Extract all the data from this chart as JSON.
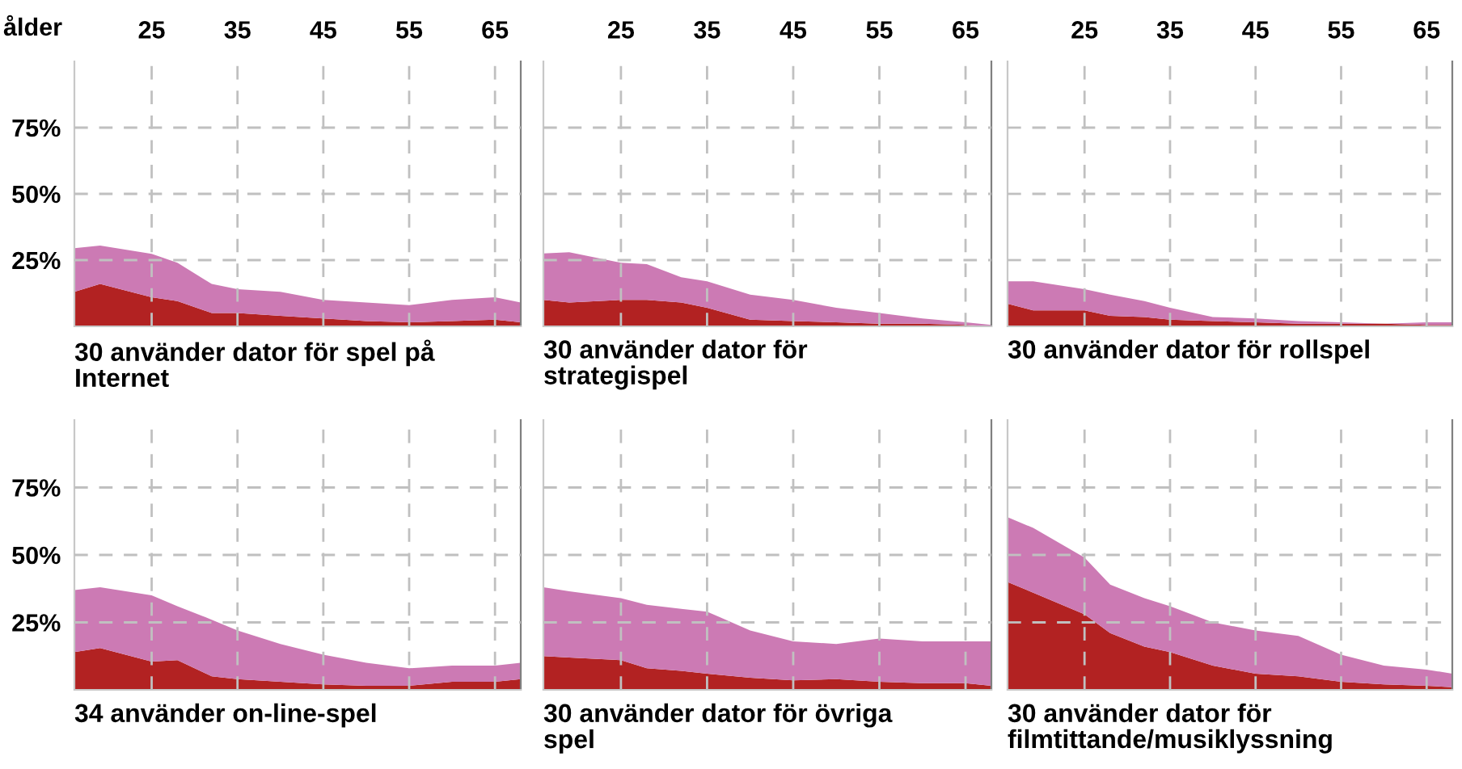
{
  "chart_data": [
    {
      "type": "area",
      "stacked": true,
      "title": "30 använder dator för spel på\nInternet",
      "annotations": [
        "ålder"
      ],
      "x": [
        16,
        19,
        25,
        28,
        32,
        35,
        40,
        45,
        50,
        55,
        60,
        65,
        68
      ],
      "xlim": [
        16,
        68
      ],
      "xticks": [
        25,
        35,
        45,
        55,
        65
      ],
      "ylim": [
        0,
        100
      ],
      "yticks": [
        {
          "value": 25,
          "label": "25%"
        },
        {
          "value": 50,
          "label": "50%"
        },
        {
          "value": 75,
          "label": "75%"
        }
      ],
      "grid": true,
      "series": [
        {
          "color": "#b22222",
          "values": [
            13,
            16,
            11,
            9.5,
            5,
            5,
            4,
            3,
            2,
            1.5,
            2,
            2.5,
            1.5
          ]
        },
        {
          "color": "#cc7ab4",
          "values": [
            16.5,
            14.5,
            16.4,
            14.5,
            11,
            9,
            9,
            7,
            7,
            6.5,
            8,
            8.5,
            7.5
          ]
        }
      ]
    },
    {
      "type": "area",
      "stacked": true,
      "title": "30 använder dator för\nstrategispel",
      "x": [
        16,
        19,
        25,
        28,
        32,
        35,
        40,
        45,
        50,
        55,
        60,
        65,
        68
      ],
      "xlim": [
        16,
        68
      ],
      "xticks": [
        25,
        35,
        45,
        55,
        65
      ],
      "ylim": [
        0,
        100
      ],
      "yticks": [
        {
          "value": 25,
          "label": null
        },
        {
          "value": 50,
          "label": null
        },
        {
          "value": 75,
          "label": null
        }
      ],
      "grid": true,
      "tick_labels": "x",
      "series": [
        {
          "color": "#b22222",
          "values": [
            10,
            9,
            10,
            10,
            9,
            7,
            2.5,
            2,
            1.5,
            1,
            1,
            0.5,
            0
          ]
        },
        {
          "color": "#cc7ab4",
          "values": [
            17.5,
            19,
            14,
            13.5,
            9.5,
            10,
            9.5,
            8,
            5.5,
            4,
            2,
            1,
            0.5
          ]
        }
      ]
    },
    {
      "type": "area",
      "stacked": true,
      "title": "30 använder dator för rollspel",
      "x": [
        16,
        19,
        25,
        28,
        32,
        35,
        40,
        45,
        50,
        55,
        60,
        65,
        68
      ],
      "xlim": [
        16,
        68
      ],
      "xticks": [
        25,
        35,
        45,
        55,
        65
      ],
      "ylim": [
        0,
        100
      ],
      "yticks": [
        {
          "value": 25,
          "label": null
        },
        {
          "value": 50,
          "label": null
        },
        {
          "value": 75,
          "label": null
        }
      ],
      "grid": true,
      "tick_labels": "x",
      "series": [
        {
          "color": "#b22222",
          "values": [
            8.5,
            6,
            6,
            4,
            3.5,
            2.5,
            2,
            1.5,
            1,
            1,
            1,
            0.5,
            0.5
          ]
        },
        {
          "color": "#cc7ab4",
          "values": [
            8.5,
            11,
            8,
            8,
            6,
            4.5,
            1.5,
            1.5,
            1,
            0.5,
            0,
            1,
            1
          ]
        }
      ]
    },
    {
      "type": "area",
      "stacked": true,
      "title": "34 använder on-line-spel",
      "x": [
        16,
        19,
        25,
        28,
        32,
        35,
        40,
        45,
        50,
        55,
        60,
        65,
        68
      ],
      "xlim": [
        16,
        68
      ],
      "xticks": [
        {
          "value": 25,
          "label": null
        },
        {
          "value": 35,
          "label": null
        },
        {
          "value": 45,
          "label": null
        },
        {
          "value": 55,
          "label": null
        },
        {
          "value": 65,
          "label": null
        }
      ],
      "ylim": [
        0,
        100
      ],
      "yticks": [
        {
          "value": 25,
          "label": "25%"
        },
        {
          "value": 50,
          "label": "50%"
        },
        {
          "value": 75,
          "label": "75%"
        }
      ],
      "grid": true,
      "tick_labels": "y",
      "series": [
        {
          "color": "#b22222",
          "values": [
            14,
            15.5,
            10.5,
            11,
            5,
            4,
            3,
            2,
            1.5,
            1.5,
            3,
            3,
            4
          ]
        },
        {
          "color": "#cc7ab4",
          "values": [
            23,
            22.5,
            24.5,
            20,
            21,
            18,
            14,
            11,
            8.5,
            6.5,
            6,
            6,
            6
          ]
        }
      ]
    },
    {
      "type": "area",
      "stacked": true,
      "title": "30 använder dator för övriga\nspel",
      "x": [
        16,
        19,
        25,
        28,
        32,
        35,
        40,
        45,
        50,
        55,
        60,
        65,
        68
      ],
      "xlim": [
        16,
        68
      ],
      "xticks": [
        {
          "value": 25,
          "label": null
        },
        {
          "value": 35,
          "label": null
        },
        {
          "value": 45,
          "label": null
        },
        {
          "value": 55,
          "label": null
        },
        {
          "value": 65,
          "label": null
        }
      ],
      "ylim": [
        0,
        100
      ],
      "yticks": [
        {
          "value": 25,
          "label": null
        },
        {
          "value": 50,
          "label": null
        },
        {
          "value": 75,
          "label": null
        }
      ],
      "grid": true,
      "tick_labels": false,
      "series": [
        {
          "color": "#b22222",
          "values": [
            12.5,
            12,
            11,
            8,
            7,
            6,
            4.5,
            3.5,
            4,
            3,
            2.5,
            2.5,
            1.5
          ]
        },
        {
          "color": "#cc7ab4",
          "values": [
            25.5,
            24.5,
            23,
            23.5,
            23,
            23,
            17.5,
            14.5,
            13,
            16,
            15.5,
            15.5,
            16.5
          ]
        }
      ]
    },
    {
      "type": "area",
      "stacked": true,
      "title": "30 använder dator för\nfilmtittande/musiklyssning",
      "x": [
        16,
        19,
        25,
        28,
        32,
        35,
        40,
        45,
        50,
        55,
        60,
        65,
        68
      ],
      "xlim": [
        16,
        68
      ],
      "xticks": [
        {
          "value": 25,
          "label": null
        },
        {
          "value": 35,
          "label": null
        },
        {
          "value": 45,
          "label": null
        },
        {
          "value": 55,
          "label": null
        },
        {
          "value": 65,
          "label": null
        }
      ],
      "ylim": [
        0,
        100
      ],
      "yticks": [
        {
          "value": 25,
          "label": null
        },
        {
          "value": 50,
          "label": null
        },
        {
          "value": 75,
          "label": null
        }
      ],
      "grid": true,
      "tick_labels": false,
      "series": [
        {
          "color": "#b22222",
          "values": [
            40,
            36,
            28,
            21,
            16,
            14,
            9,
            6,
            5,
            3,
            2,
            1.5,
            1
          ]
        },
        {
          "color": "#cc7ab4",
          "values": [
            24,
            24,
            21,
            18,
            18,
            17,
            16,
            16,
            15,
            10,
            7,
            6,
            5
          ]
        }
      ]
    }
  ]
}
